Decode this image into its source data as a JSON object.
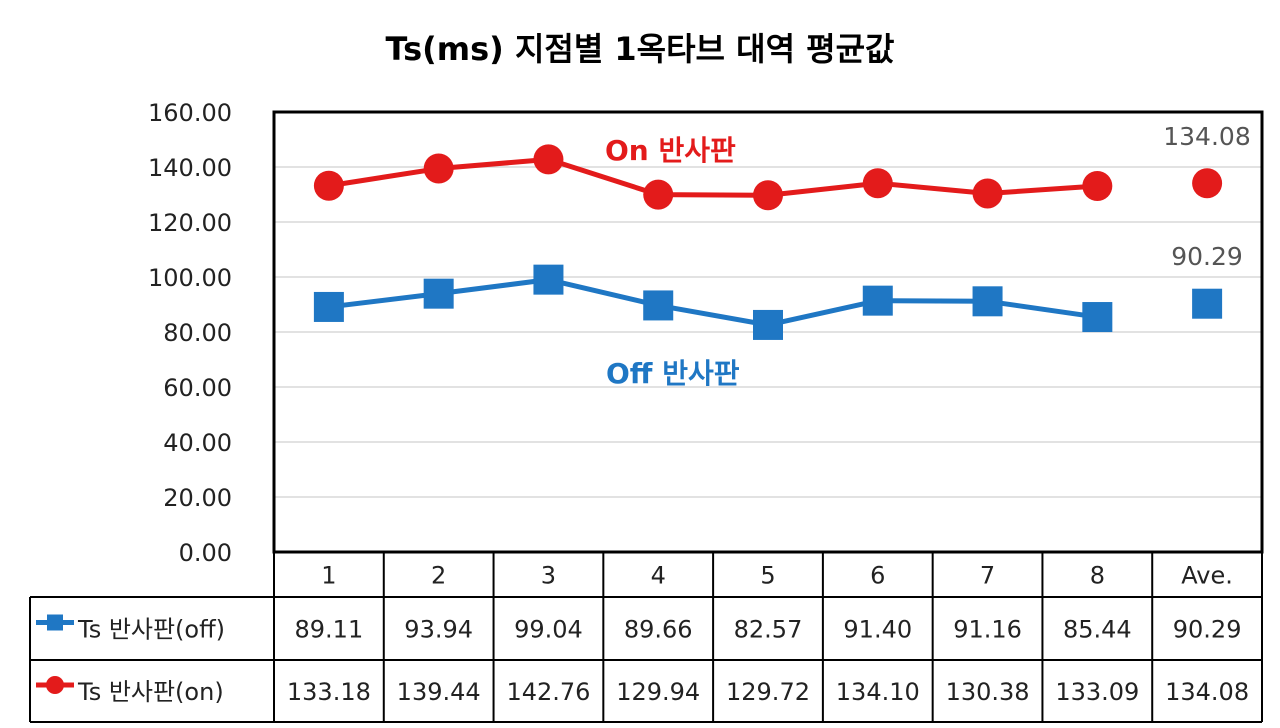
{
  "chart_data": {
    "type": "line",
    "title": "Ts(ms) 지점별 1옥타브 대역 평균값",
    "categories": [
      "1",
      "2",
      "3",
      "4",
      "5",
      "6",
      "7",
      "8",
      "Ave."
    ],
    "ylim": [
      0,
      160
    ],
    "yticks": [
      "0.00",
      "20.00",
      "40.00",
      "60.00",
      "80.00",
      "100.00",
      "120.00",
      "140.00",
      "160.00"
    ],
    "grid": true,
    "series": [
      {
        "name": "Ts 반사판(off)",
        "color": "#1f77c4",
        "marker": "square",
        "values": [
          89.11,
          93.94,
          99.04,
          89.66,
          82.57,
          91.4,
          91.16,
          85.44,
          90.29
        ],
        "labels": [
          "89.11",
          "93.94",
          "99.04",
          "89.66",
          "82.57",
          "91.40",
          "91.16",
          "85.44",
          "90.29"
        ]
      },
      {
        "name": "Ts 반사판(on)",
        "color": "#e31b1b",
        "marker": "circle",
        "values": [
          133.18,
          139.44,
          142.76,
          129.94,
          129.72,
          134.1,
          130.38,
          133.09,
          134.08
        ],
        "labels": [
          "133.18",
          "139.44",
          "142.76",
          "129.94",
          "129.72",
          "134.10",
          "130.38",
          "133.09",
          "134.08"
        ]
      }
    ],
    "average_labels": {
      "off": "90.29",
      "on": "134.08"
    },
    "annotations": {
      "on": "On 반사판",
      "off": "Off 반사판"
    }
  }
}
